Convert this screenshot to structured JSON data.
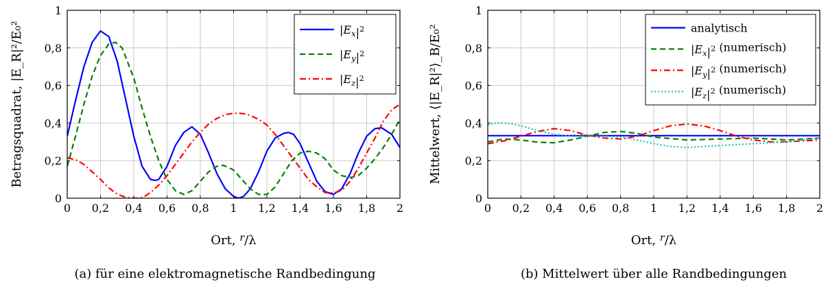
{
  "chart_data": [
    {
      "type": "line",
      "caption": "(a) für eine elektromagnetische Randbedingung",
      "xlabel": "Ort, r/λ",
      "ylabel": "Betragsquadrat, |E_R|²/E₀²",
      "xlim": [
        0,
        2
      ],
      "ylim": [
        0,
        1
      ],
      "xticks": [
        "0",
        "0,2",
        "0,4",
        "0,6",
        "0,8",
        "1",
        "1,2",
        "1,4",
        "1,6",
        "1,8",
        "2"
      ],
      "yticks": [
        "0",
        "0,2",
        "0,4",
        "0,6",
        "0,8",
        "1"
      ],
      "grid": true,
      "legend_position": "top-right",
      "series": [
        {
          "name": "|E_x|²",
          "color": "#0000ff",
          "style": "solid",
          "x": [
            0,
            0.05,
            0.1,
            0.15,
            0.2,
            0.25,
            0.3,
            0.35,
            0.4,
            0.45,
            0.5,
            0.53,
            0.55,
            0.6,
            0.65,
            0.7,
            0.75,
            0.8,
            0.85,
            0.9,
            0.95,
            1.0,
            1.03,
            1.06,
            1.1,
            1.15,
            1.2,
            1.25,
            1.3,
            1.33,
            1.36,
            1.4,
            1.45,
            1.5,
            1.55,
            1.6,
            1.65,
            1.7,
            1.75,
            1.8,
            1.85,
            1.89,
            1.95,
            2.0
          ],
          "y": [
            0.33,
            0.52,
            0.7,
            0.83,
            0.89,
            0.86,
            0.73,
            0.53,
            0.33,
            0.17,
            0.1,
            0.095,
            0.1,
            0.17,
            0.28,
            0.35,
            0.38,
            0.34,
            0.24,
            0.13,
            0.05,
            0.01,
            0.0,
            0.01,
            0.05,
            0.14,
            0.25,
            0.32,
            0.345,
            0.35,
            0.34,
            0.29,
            0.19,
            0.09,
            0.035,
            0.02,
            0.05,
            0.13,
            0.24,
            0.33,
            0.37,
            0.375,
            0.34,
            0.27
          ]
        },
        {
          "name": "|E_y|²",
          "color": "#008000",
          "style": "dashed",
          "x": [
            0,
            0.05,
            0.1,
            0.15,
            0.2,
            0.25,
            0.29,
            0.33,
            0.4,
            0.45,
            0.5,
            0.55,
            0.6,
            0.65,
            0.7,
            0.75,
            0.8,
            0.85,
            0.9,
            0.94,
            1.0,
            1.05,
            1.1,
            1.15,
            1.2,
            1.25,
            1.3,
            1.35,
            1.4,
            1.45,
            1.5,
            1.55,
            1.6,
            1.65,
            1.7,
            1.75,
            1.8,
            1.85,
            1.9,
            1.95,
            2.0
          ],
          "y": [
            0.17,
            0.33,
            0.5,
            0.65,
            0.76,
            0.82,
            0.83,
            0.8,
            0.64,
            0.48,
            0.33,
            0.2,
            0.1,
            0.04,
            0.02,
            0.04,
            0.09,
            0.14,
            0.17,
            0.175,
            0.15,
            0.1,
            0.05,
            0.02,
            0.02,
            0.06,
            0.13,
            0.2,
            0.24,
            0.25,
            0.24,
            0.21,
            0.15,
            0.12,
            0.11,
            0.12,
            0.16,
            0.21,
            0.27,
            0.34,
            0.42
          ]
        },
        {
          "name": "|E_z|²",
          "color": "#ff0000",
          "style": "dashdot",
          "x": [
            0,
            0.05,
            0.1,
            0.15,
            0.2,
            0.25,
            0.3,
            0.35,
            0.4,
            0.43,
            0.46,
            0.5,
            0.55,
            0.6,
            0.65,
            0.7,
            0.75,
            0.8,
            0.85,
            0.9,
            0.95,
            1.0,
            1.03,
            1.06,
            1.1,
            1.15,
            1.2,
            1.25,
            1.3,
            1.35,
            1.4,
            1.45,
            1.5,
            1.55,
            1.6,
            1.63,
            1.66,
            1.7,
            1.75,
            1.8,
            1.85,
            1.9,
            1.95,
            2.0
          ],
          "y": [
            0.215,
            0.205,
            0.18,
            0.14,
            0.1,
            0.055,
            0.022,
            0.005,
            0.0,
            0.0,
            0.007,
            0.03,
            0.07,
            0.12,
            0.18,
            0.24,
            0.3,
            0.35,
            0.395,
            0.425,
            0.445,
            0.452,
            0.452,
            0.45,
            0.44,
            0.42,
            0.39,
            0.34,
            0.28,
            0.22,
            0.16,
            0.1,
            0.06,
            0.03,
            0.028,
            0.035,
            0.05,
            0.09,
            0.16,
            0.24,
            0.32,
            0.41,
            0.47,
            0.5
          ]
        }
      ]
    },
    {
      "type": "line",
      "caption": "(b) Mittelwert über alle Randbedingungen",
      "xlabel": "Ort, r/λ",
      "ylabel": "Mittelwert, ⟨|E_R|²⟩_B/E₀²",
      "xlim": [
        0,
        2
      ],
      "ylim": [
        0,
        1
      ],
      "xticks": [
        "0",
        "0,2",
        "0,4",
        "0,6",
        "0,8",
        "1",
        "1,2",
        "1,4",
        "1,6",
        "1,8",
        "2"
      ],
      "yticks": [
        "0",
        "0,2",
        "0,4",
        "0,6",
        "0,8",
        "1"
      ],
      "grid": true,
      "legend_position": "top-right",
      "series": [
        {
          "name": "analytisch",
          "color": "#0000ff",
          "style": "solid",
          "x": [
            0,
            2
          ],
          "y": [
            0.333,
            0.333
          ]
        },
        {
          "name": "|E_x|² (numerisch)",
          "color": "#008000",
          "style": "dashed",
          "x": [
            0,
            0.1,
            0.2,
            0.3,
            0.4,
            0.5,
            0.6,
            0.7,
            0.8,
            0.9,
            1.0,
            1.2,
            1.4,
            1.6,
            1.8,
            2.0
          ],
          "y": [
            0.3,
            0.315,
            0.31,
            0.298,
            0.295,
            0.31,
            0.33,
            0.35,
            0.355,
            0.345,
            0.325,
            0.31,
            0.315,
            0.32,
            0.31,
            0.32
          ]
        },
        {
          "name": "|E_y|² (numerisch)",
          "color": "#ff0000",
          "style": "dashdot",
          "x": [
            0,
            0.1,
            0.2,
            0.3,
            0.4,
            0.5,
            0.6,
            0.7,
            0.8,
            0.9,
            1.0,
            1.1,
            1.2,
            1.3,
            1.4,
            1.5,
            1.6,
            1.7,
            1.8,
            1.9,
            2.0
          ],
          "y": [
            0.29,
            0.305,
            0.33,
            0.355,
            0.37,
            0.36,
            0.335,
            0.32,
            0.315,
            0.33,
            0.36,
            0.385,
            0.395,
            0.385,
            0.36,
            0.33,
            0.31,
            0.3,
            0.3,
            0.305,
            0.31
          ]
        },
        {
          "name": "|E_z|² (numerisch)",
          "color": "#17bfbf",
          "style": "dotted",
          "x": [
            0,
            0.05,
            0.1,
            0.15,
            0.2,
            0.3,
            0.4,
            0.5,
            0.6,
            0.7,
            0.8,
            0.9,
            1.0,
            1.1,
            1.2,
            1.3,
            1.4,
            1.5,
            1.6,
            1.7,
            1.8,
            1.9,
            2.0
          ],
          "y": [
            0.39,
            0.4,
            0.4,
            0.395,
            0.385,
            0.36,
            0.34,
            0.33,
            0.33,
            0.33,
            0.325,
            0.31,
            0.29,
            0.275,
            0.27,
            0.275,
            0.28,
            0.285,
            0.29,
            0.295,
            0.3,
            0.31,
            0.32
          ]
        }
      ]
    }
  ]
}
